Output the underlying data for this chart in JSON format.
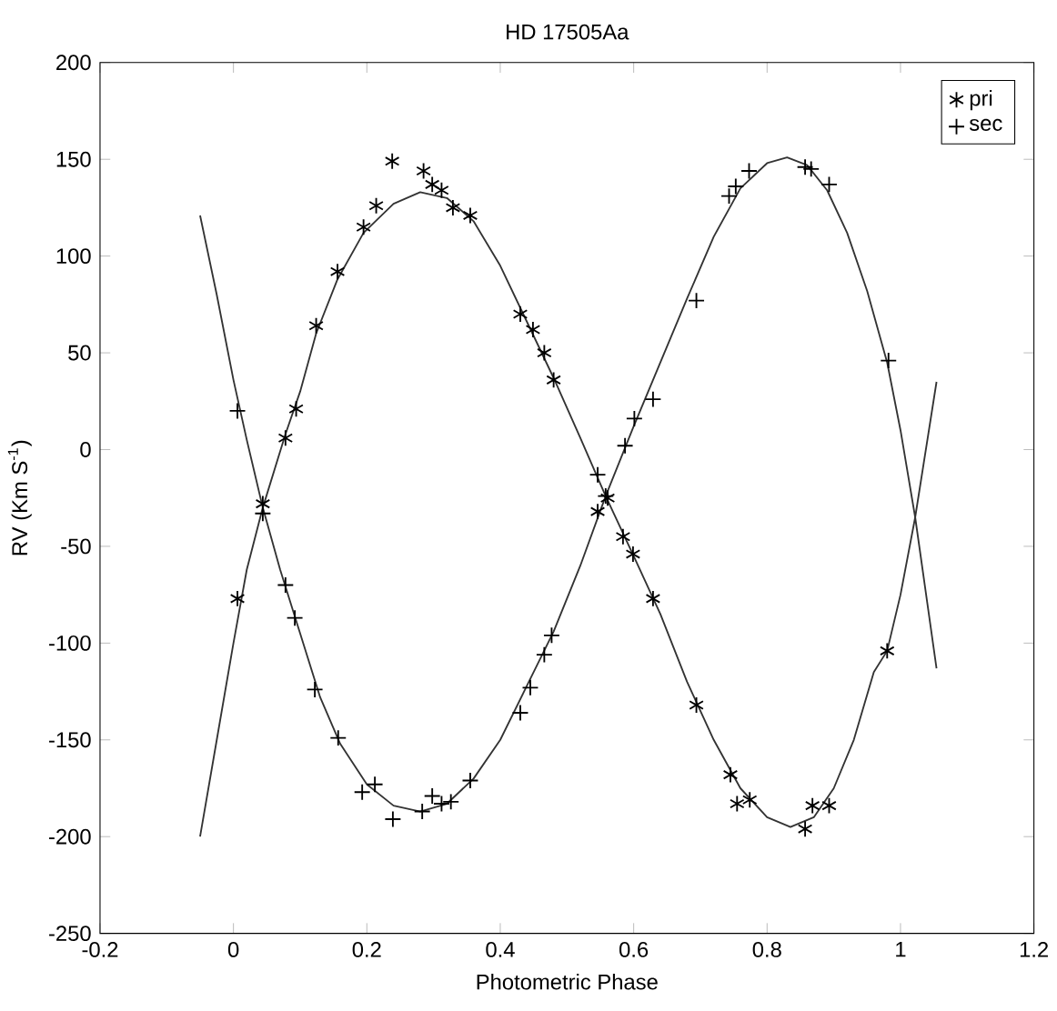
{
  "chart_data": {
    "type": "scatter",
    "title": "HD 17505Aa",
    "xlabel": "Photometric Phase",
    "ylabel": "RV (Km S$^{-1}$)",
    "xlim": [
      -0.2,
      1.2
    ],
    "xticks": [
      -0.2,
      0,
      0.2,
      0.4,
      0.6,
      0.8,
      1,
      1.2
    ],
    "ylim": [
      -250,
      200
    ],
    "yticks": [
      -250,
      -200,
      -150,
      -100,
      -50,
      0,
      50,
      100,
      150,
      200
    ],
    "grid": false,
    "legend": "top right",
    "series": [
      {
        "name": "pri",
        "type": "scatter",
        "color": "#000000",
        "x": [
          0.006,
          0.044,
          0.078,
          0.094,
          0.124,
          0.156,
          0.195,
          0.214,
          0.238,
          0.285,
          0.298,
          0.312,
          0.329,
          0.355,
          0.43,
          0.449,
          0.466,
          0.48,
          0.546,
          0.561,
          0.584,
          0.599,
          0.629,
          0.694,
          0.745,
          0.755,
          0.774,
          0.857,
          0.868,
          0.893,
          0.98
        ],
        "values": [
          -77,
          -28,
          6,
          21,
          64,
          92,
          115,
          126,
          149,
          144,
          137,
          134,
          125,
          121,
          70,
          62,
          50,
          36,
          -32,
          -25,
          -45,
          -54,
          -77,
          -132,
          -168,
          -183,
          -181,
          -196,
          -184,
          -184,
          -104
        ]
      },
      {
        "name": "sec",
        "type": "scatter",
        "marker": "cross",
        "color": "#000000",
        "x": [
          0.006,
          0.044,
          0.078,
          0.092,
          0.122,
          0.157,
          0.193,
          0.212,
          0.239,
          0.283,
          0.298,
          0.312,
          0.326,
          0.355,
          0.43,
          0.445,
          0.466,
          0.477,
          0.546,
          0.558,
          0.587,
          0.601,
          0.629,
          0.694,
          0.743,
          0.753,
          0.773,
          0.857,
          0.866,
          0.893,
          0.982
        ],
        "values": [
          20,
          -33,
          -70,
          -87,
          -124,
          -149,
          -177,
          -173,
          -191,
          -187,
          -179,
          -183,
          -182,
          -171,
          -136,
          -123,
          -106,
          -96,
          -13,
          -24,
          2,
          16,
          26,
          77,
          131,
          136,
          144,
          146,
          145,
          137,
          46
        ]
      },
      {
        "type": "line",
        "marker": "none",
        "color": "#333333",
        "x": [
          -0.05,
          -0.025,
          0,
          0.02,
          0.044,
          0.078,
          0.1,
          0.124,
          0.156,
          0.195,
          0.24,
          0.28,
          0.32,
          0.36,
          0.4,
          0.44,
          0.48,
          0.52,
          0.558,
          0.6,
          0.64,
          0.68,
          0.72,
          0.76,
          0.8,
          0.835,
          0.87,
          0.9,
          0.93,
          0.96,
          0.98,
          1.0,
          1.022,
          1.054
        ],
        "values": [
          -200,
          -150,
          -100,
          -62,
          -30,
          8,
          30,
          60,
          88,
          112,
          127,
          133,
          130,
          118,
          95,
          66,
          37,
          6,
          -24,
          -55,
          -85,
          -120,
          -150,
          -175,
          -190,
          -195,
          -190,
          -175,
          -150,
          -115,
          -104,
          -75,
          -35,
          35
        ]
      },
      {
        "type": "line",
        "marker": "none",
        "color": "#333333",
        "x": [
          -0.05,
          -0.025,
          0,
          0.02,
          0.044,
          0.07,
          0.1,
          0.13,
          0.16,
          0.2,
          0.24,
          0.28,
          0.32,
          0.36,
          0.4,
          0.44,
          0.48,
          0.52,
          0.558,
          0.6,
          0.64,
          0.68,
          0.72,
          0.76,
          0.8,
          0.83,
          0.86,
          0.89,
          0.92,
          0.95,
          0.98,
          1.0,
          1.022,
          1.054
        ],
        "values": [
          121,
          80,
          36,
          5,
          -30,
          -62,
          -95,
          -128,
          -152,
          -173,
          -184,
          -187,
          -183,
          -170,
          -150,
          -122,
          -94,
          -60,
          -24,
          12,
          45,
          78,
          110,
          135,
          148,
          151,
          147,
          134,
          112,
          82,
          45,
          10,
          -35,
          -113
        ]
      }
    ]
  }
}
